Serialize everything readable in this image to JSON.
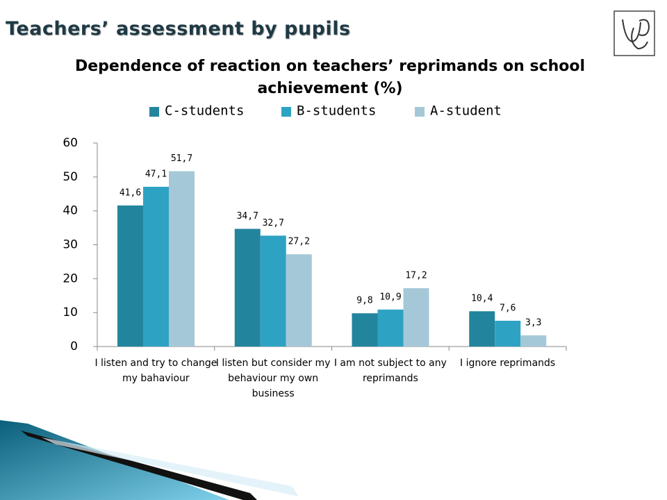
{
  "header": {
    "title": "Teachers’ assessment by pupils"
  },
  "chart_data": {
    "type": "bar",
    "title": "Dependence of reaction on teachers’ reprimands on school achievement (%)",
    "categories": [
      "I listen and try to change my bahaviour",
      "I listen but consider my behaviour my own business",
      "I am not subject to any reprimands",
      "I ignore reprimands"
    ],
    "series": [
      {
        "name": "C-students",
        "color": "#23849e",
        "values": [
          41.6,
          34.7,
          9.8,
          10.4
        ],
        "value_labels": [
          "41,6",
          "34,7",
          "9,8",
          "10,4"
        ]
      },
      {
        "name": "B-students",
        "color": "#2ea2c3",
        "values": [
          47.1,
          32.7,
          10.9,
          7.6
        ],
        "value_labels": [
          "47,1",
          "32,7",
          "10,9",
          "7,6"
        ]
      },
      {
        "name": "A-student",
        "color": "#a5c8d8",
        "values": [
          51.7,
          27.2,
          17.2,
          3.3
        ],
        "value_labels": [
          "51,7",
          "27,2",
          "17,2",
          "3,3"
        ]
      }
    ],
    "ylim": [
      0,
      60
    ],
    "yticks": [
      0,
      10,
      20,
      30,
      40,
      50,
      60
    ],
    "legend": "top"
  }
}
